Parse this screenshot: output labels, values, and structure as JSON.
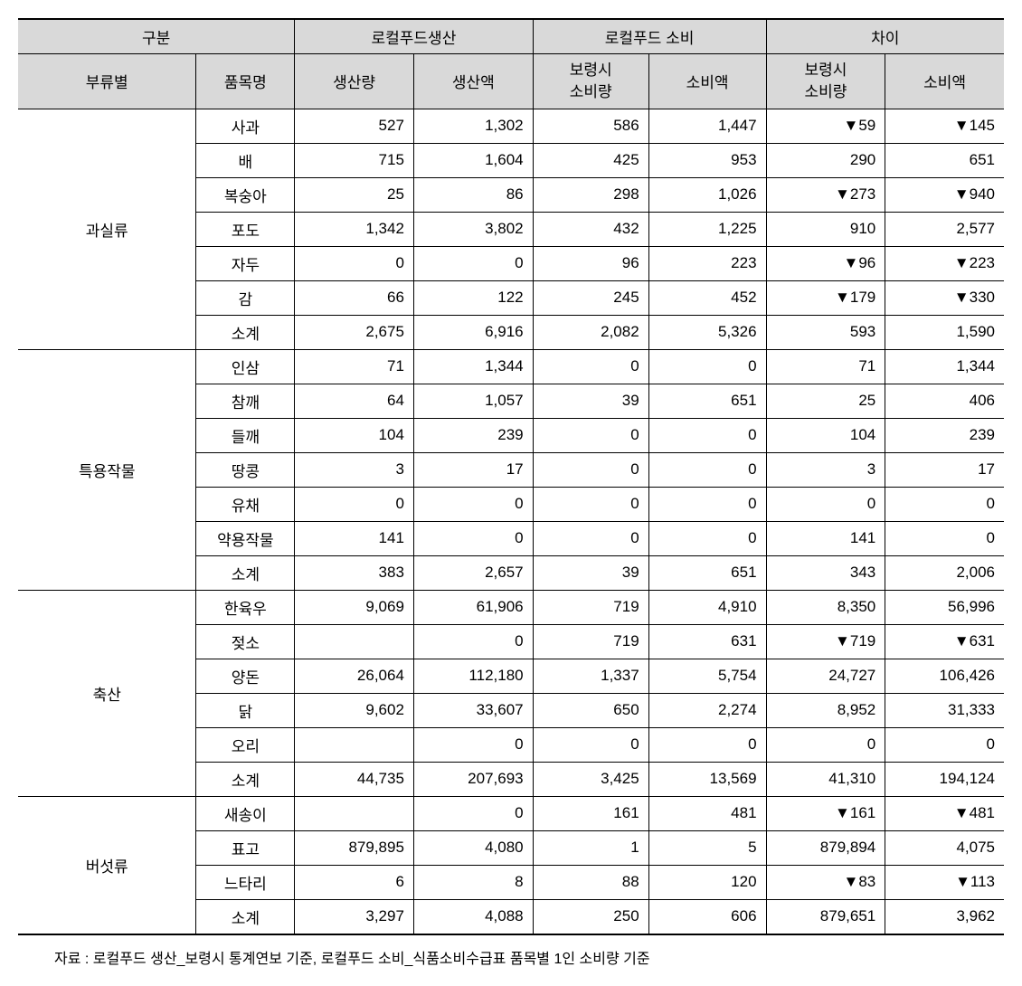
{
  "headers": {
    "group": "구분",
    "production": "로컬푸드생산",
    "consumption": "로컬푸드 소비",
    "difference": "차이",
    "category": "부류별",
    "item": "품목명",
    "prod_qty": "생산량",
    "prod_val": "생산액",
    "cons_qty_line1": "보령시",
    "cons_qty_line2": "소비량",
    "cons_val": "소비액",
    "diff_qty_line1": "보령시",
    "diff_qty_line2": "소비량",
    "diff_val": "소비액"
  },
  "categories": [
    {
      "name": "과실류",
      "rows": [
        {
          "item": "사과",
          "pq": "527",
          "pv": "1,302",
          "cq": "586",
          "cv": "1,447",
          "dq": "▼59",
          "dv": "▼145"
        },
        {
          "item": "배",
          "pq": "715",
          "pv": "1,604",
          "cq": "425",
          "cv": "953",
          "dq": "290",
          "dv": "651"
        },
        {
          "item": "복숭아",
          "pq": "25",
          "pv": "86",
          "cq": "298",
          "cv": "1,026",
          "dq": "▼273",
          "dv": "▼940"
        },
        {
          "item": "포도",
          "pq": "1,342",
          "pv": "3,802",
          "cq": "432",
          "cv": "1,225",
          "dq": "910",
          "dv": "2,577"
        },
        {
          "item": "자두",
          "pq": "0",
          "pv": "0",
          "cq": "96",
          "cv": "223",
          "dq": "▼96",
          "dv": "▼223"
        },
        {
          "item": "감",
          "pq": "66",
          "pv": "122",
          "cq": "245",
          "cv": "452",
          "dq": "▼179",
          "dv": "▼330"
        },
        {
          "item": "소계",
          "pq": "2,675",
          "pv": "6,916",
          "cq": "2,082",
          "cv": "5,326",
          "dq": "593",
          "dv": "1,590"
        }
      ]
    },
    {
      "name": "특용작물",
      "rows": [
        {
          "item": "인삼",
          "pq": "71",
          "pv": "1,344",
          "cq": "0",
          "cv": "0",
          "dq": "71",
          "dv": "1,344"
        },
        {
          "item": "참깨",
          "pq": "64",
          "pv": "1,057",
          "cq": "39",
          "cv": "651",
          "dq": "25",
          "dv": "406"
        },
        {
          "item": "들깨",
          "pq": "104",
          "pv": "239",
          "cq": "0",
          "cv": "0",
          "dq": "104",
          "dv": "239"
        },
        {
          "item": "땅콩",
          "pq": "3",
          "pv": "17",
          "cq": "0",
          "cv": "0",
          "dq": "3",
          "dv": "17"
        },
        {
          "item": "유채",
          "pq": "0",
          "pv": "0",
          "cq": "0",
          "cv": "0",
          "dq": "0",
          "dv": "0"
        },
        {
          "item": "약용작물",
          "pq": "141",
          "pv": "0",
          "cq": "0",
          "cv": "0",
          "dq": "141",
          "dv": "0"
        },
        {
          "item": "소계",
          "pq": "383",
          "pv": "2,657",
          "cq": "39",
          "cv": "651",
          "dq": "343",
          "dv": "2,006"
        }
      ]
    },
    {
      "name": "축산",
      "rows": [
        {
          "item": "한육우",
          "pq": "9,069",
          "pv": "61,906",
          "cq": "719",
          "cv": "4,910",
          "dq": "8,350",
          "dv": "56,996"
        },
        {
          "item": "젖소",
          "pq": "",
          "pv": "0",
          "cq": "719",
          "cv": "631",
          "dq": "▼719",
          "dv": "▼631"
        },
        {
          "item": "양돈",
          "pq": "26,064",
          "pv": "112,180",
          "cq": "1,337",
          "cv": "5,754",
          "dq": "24,727",
          "dv": "106,426"
        },
        {
          "item": "닭",
          "pq": "9,602",
          "pv": "33,607",
          "cq": "650",
          "cv": "2,274",
          "dq": "8,952",
          "dv": "31,333"
        },
        {
          "item": "오리",
          "pq": "",
          "pv": "0",
          "cq": "0",
          "cv": "0",
          "dq": "0",
          "dv": "0"
        },
        {
          "item": "소계",
          "pq": "44,735",
          "pv": "207,693",
          "cq": "3,425",
          "cv": "13,569",
          "dq": "41,310",
          "dv": "194,124"
        }
      ]
    },
    {
      "name": "버섯류",
      "rows": [
        {
          "item": "새송이",
          "pq": "",
          "pv": "0",
          "cq": "161",
          "cv": "481",
          "dq": "▼161",
          "dv": "▼481"
        },
        {
          "item": "표고",
          "pq": "879,895",
          "pv": "4,080",
          "cq": "1",
          "cv": "5",
          "dq": "879,894",
          "dv": "4,075"
        },
        {
          "item": "느타리",
          "pq": "6",
          "pv": "8",
          "cq": "88",
          "cv": "120",
          "dq": "▼83",
          "dv": "▼113"
        },
        {
          "item": "소계",
          "pq": "3,297",
          "pv": "4,088",
          "cq": "250",
          "cv": "606",
          "dq": "879,651",
          "dv": "3,962"
        }
      ]
    }
  ],
  "footnote": "자료 : 로컬푸드 생산_보령시 통계연보 기준, 로컬푸드 소비_식품소비수급표 품목별 1인 소비량 기준"
}
